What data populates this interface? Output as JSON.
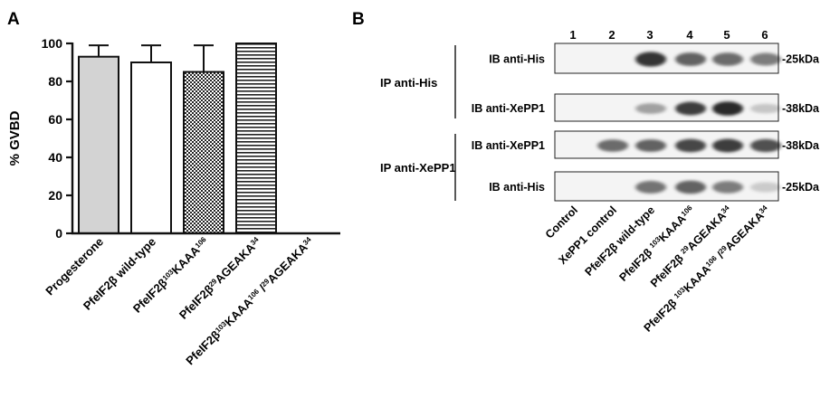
{
  "panel_a": {
    "letter": "A",
    "y_axis_label": "% GVBD",
    "y_ticks": [
      "0",
      "20",
      "40",
      "60",
      "80",
      "100"
    ],
    "bars": [
      {
        "main": "Progesterone",
        "value": 93,
        "error": 6,
        "fill": "gray"
      },
      {
        "main": "PfeIF2β wild-type",
        "value": 90,
        "error": 9,
        "fill": "white"
      },
      {
        "main": "PfeIF2β",
        "sup1": "103",
        "mid": "KAAA",
        "sup2": "106",
        "value": 85,
        "error": 14,
        "fill": "checker"
      },
      {
        "main": "PfeIF2β",
        "sup1": "29",
        "mid": "AGEAKA",
        "sup2": "34",
        "value": 100,
        "error": 0,
        "fill": "hstripes"
      },
      {
        "main": "PfeIF2β",
        "sup1": "103",
        "mid": "KAAA",
        "sup2": "106",
        "mid2": " /",
        "sup3": "29",
        "mid3": "AGEAKA",
        "sup4": "34",
        "value": 0,
        "error": 0,
        "fill": "none"
      }
    ]
  },
  "chart_data": {
    "type": "bar",
    "categories": [
      "Progesterone",
      "PfeIF2β wild-type",
      "PfeIF2β 103KAAA106",
      "PfeIF2β 29AGEAKA34",
      "PfeIF2β 103KAAA106 /29AGEAKA34"
    ],
    "values": [
      93,
      90,
      85,
      100,
      0
    ],
    "errors": [
      6,
      9,
      14,
      0,
      0
    ],
    "ylabel": "% GVBD",
    "ylim": [
      0,
      100
    ],
    "grid": false
  },
  "panel_b": {
    "letter": "B",
    "lane_numbers": [
      "1",
      "2",
      "3",
      "4",
      "5",
      "6"
    ],
    "groups": [
      {
        "label": "IP anti-His"
      },
      {
        "label": "IP anti-XePP1"
      }
    ],
    "strips": [
      {
        "ib": "IB anti-His",
        "kda": "-25kDa",
        "bands": [
          0,
          0,
          0.85,
          0.6,
          0.55,
          0.45
        ]
      },
      {
        "ib": "IB anti-XePP1",
        "kda": "-38kDa",
        "bands": [
          0,
          0,
          0.25,
          0.8,
          0.9,
          0.05
        ]
      },
      {
        "ib": "IB anti-XePP1",
        "kda": "-38kDa",
        "bands": [
          0,
          0.55,
          0.6,
          0.75,
          0.8,
          0.7
        ]
      },
      {
        "ib": "IB anti-His",
        "kda": "-25kDa",
        "bands": [
          0,
          0,
          0.5,
          0.6,
          0.45,
          0.03
        ]
      }
    ],
    "lane_labels": [
      {
        "main": "Control"
      },
      {
        "main": "XePP1 control"
      },
      {
        "main": "PfeIF2β wild-type"
      },
      {
        "main": "PfeIF2β ",
        "sup1": "103",
        "mid": "KAAA",
        "sup2": "106"
      },
      {
        "main": "PfeIF2β ",
        "sup1": "29",
        "mid": "AGEAKA",
        "sup2": "34"
      },
      {
        "main": "PfeIF2β ",
        "sup1": "103",
        "mid": "KAAA",
        "sup2": "106",
        "mid2": " /",
        "sup3": "29",
        "mid3": "AGEAKA",
        "sup4": "34"
      }
    ]
  }
}
